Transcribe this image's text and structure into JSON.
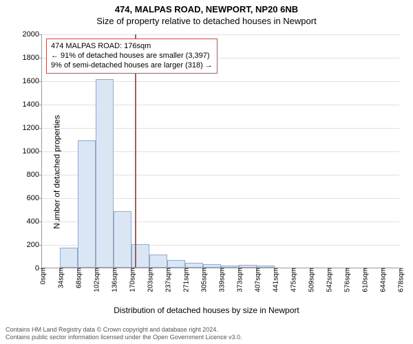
{
  "header": {
    "address": "474, MALPAS ROAD, NEWPORT, NP20 6NB",
    "subtitle": "Size of property relative to detached houses in Newport"
  },
  "chart": {
    "type": "histogram",
    "ylabel": "Number of detached properties",
    "xlabel": "Distribution of detached houses by size in Newport",
    "ylim": [
      0,
      2000
    ],
    "ytick_step": 200,
    "x_tick_labels": [
      "0sqm",
      "34sqm",
      "68sqm",
      "102sqm",
      "136sqm",
      "170sqm",
      "203sqm",
      "237sqm",
      "271sqm",
      "305sqm",
      "339sqm",
      "373sqm",
      "407sqm",
      "441sqm",
      "475sqm",
      "509sqm",
      "542sqm",
      "576sqm",
      "610sqm",
      "644sqm",
      "678sqm"
    ],
    "values": [
      0,
      170,
      1090,
      1610,
      480,
      200,
      110,
      65,
      40,
      30,
      20,
      25,
      15,
      0,
      0,
      0,
      0,
      0,
      0,
      0
    ],
    "bar_fill": "#dbe6f5",
    "bar_stroke": "#8faad0",
    "grid_color": "#e0e0e0",
    "axis_color": "#999999",
    "background_color": "#ffffff",
    "bar_width_ratio": 1.0,
    "marker": {
      "x_value": 176,
      "x_max": 678,
      "color": "#c0504d"
    },
    "callout": {
      "line1": "474 MALPAS ROAD: 176sqm",
      "line2": "← 91% of detached houses are smaller (3,397)",
      "line3": "9% of semi-detached houses are larger (318) →",
      "border_color": "#c0504d",
      "text_color": "#000000",
      "fontsize": 11
    },
    "label_fontsize": 12,
    "tick_fontsize": 11,
    "xtick_fontsize": 10
  },
  "footer": {
    "line1": "Contains HM Land Registry data © Crown copyright and database right 2024.",
    "line2": "Contains public sector information licensed under the Open Government Licence v3.0."
  }
}
